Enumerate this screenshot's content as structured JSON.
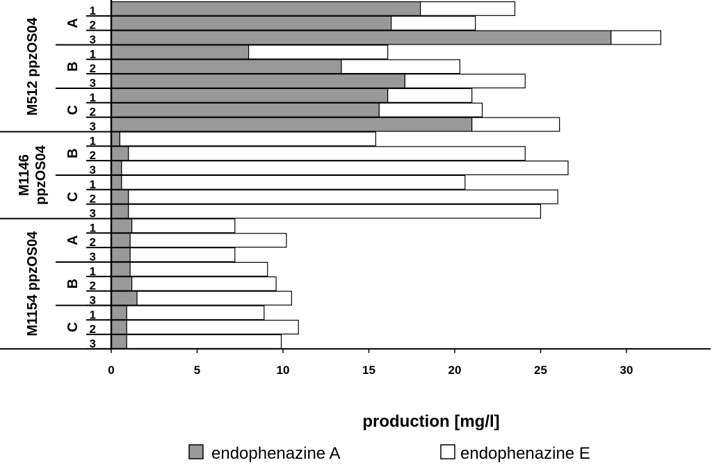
{
  "chart_data": {
    "type": "bar",
    "orientation": "horizontal",
    "stacked": true,
    "xlabel": "production [mg/l]",
    "xlim": [
      0,
      35
    ],
    "xticks": [
      0,
      5,
      10,
      15,
      20,
      25,
      30
    ],
    "grid": false,
    "legend_position": "bottom",
    "colors": {
      "A": "#999999",
      "E": "#ffffff"
    },
    "series": [
      {
        "name": "endophenazine A",
        "values": [
          18.0,
          16.3,
          29.1,
          8.0,
          13.4,
          17.1,
          16.1,
          15.6,
          21.0,
          0.5,
          1.0,
          0.6,
          0.6,
          1.0,
          1.0,
          1.2,
          1.1,
          1.1,
          1.1,
          1.2,
          1.5,
          0.9,
          0.9,
          0.9
        ]
      },
      {
        "name": "endophenazine E",
        "values": [
          5.5,
          4.9,
          2.9,
          8.1,
          6.9,
          7.0,
          4.9,
          6.0,
          5.1,
          14.9,
          23.1,
          26.0,
          20.0,
          25.0,
          24.0,
          6.0,
          9.1,
          6.1,
          8.0,
          8.4,
          9.0,
          8.0,
          10.0,
          9.0
        ]
      }
    ],
    "categories": [
      "1",
      "2",
      "3",
      "1",
      "2",
      "3",
      "1",
      "2",
      "3",
      "1",
      "2",
      "3",
      "1",
      "2",
      "3",
      "1",
      "2",
      "3",
      "1",
      "2",
      "3",
      "1",
      "2",
      "3"
    ],
    "strains": [
      {
        "label": "M512 ppzOS04",
        "lines": [
          "M512 ppzOS04"
        ],
        "start": 0,
        "end": 8
      },
      {
        "label": "M1146 ppzOS04",
        "lines": [
          "M1146",
          "ppzOS04"
        ],
        "start": 9,
        "end": 14
      },
      {
        "label": "M1154 ppzOS04",
        "lines": [
          "M1154 ppzOS04"
        ],
        "start": 15,
        "end": 23
      }
    ],
    "groups": [
      {
        "label": "A",
        "start": 0,
        "end": 2
      },
      {
        "label": "B",
        "start": 3,
        "end": 5
      },
      {
        "label": "C",
        "start": 6,
        "end": 8
      },
      {
        "label": "B",
        "start": 9,
        "end": 11
      },
      {
        "label": "C",
        "start": 12,
        "end": 14
      },
      {
        "label": "A",
        "start": 15,
        "end": 17
      },
      {
        "label": "B",
        "start": 18,
        "end": 20
      },
      {
        "label": "C",
        "start": 21,
        "end": 23
      }
    ]
  }
}
